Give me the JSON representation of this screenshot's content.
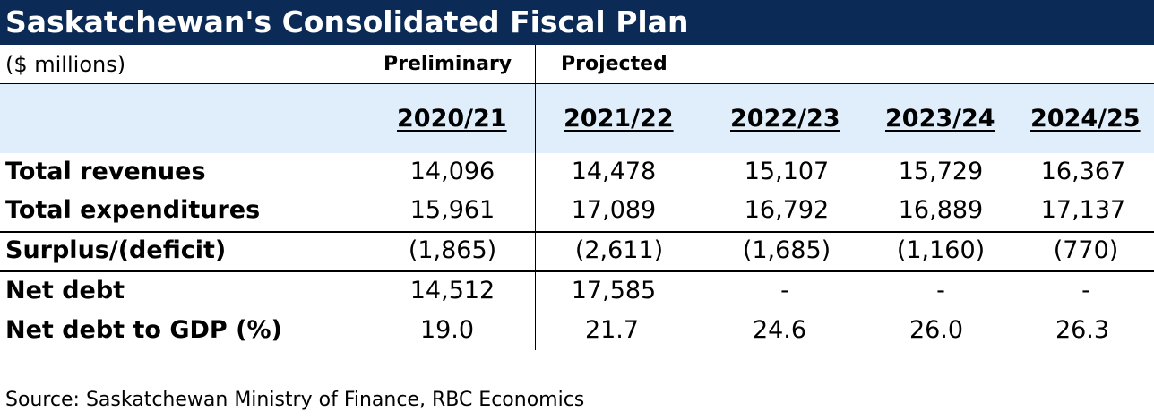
{
  "title": "Saskatchewan's Consolidated Fiscal Plan",
  "units": "($ millions)",
  "group_headers": {
    "preliminary": "Preliminary",
    "projected": "Projected"
  },
  "years": [
    "2020/21",
    "2021/22",
    "2022/23",
    "2023/24",
    "2024/25"
  ],
  "rows": [
    {
      "label": "Total revenues",
      "values": [
        "14,096",
        "14,478",
        "15,107",
        "15,729",
        "16,367"
      ]
    },
    {
      "label": "Total expenditures",
      "values": [
        "15,961",
        "17,089",
        "16,792",
        "16,889",
        "17,137"
      ]
    },
    {
      "label": "Surplus/(deficit)",
      "values": [
        "(1,865)",
        "(2,611)",
        "(1,685)",
        "(1,160)",
        "(770)"
      ]
    },
    {
      "label": "Net debt",
      "values": [
        "14,512",
        "17,585",
        "-",
        "-",
        "-"
      ]
    },
    {
      "label": "Net debt to GDP (%)",
      "values": [
        "19.0",
        "21.7",
        "24.6",
        "26.0",
        "26.3"
      ]
    }
  ],
  "source": "Source: Saskatchewan Ministry of Finance, RBC Economics",
  "colors": {
    "title_bg": "#0b2a55",
    "title_text": "#ffffff",
    "year_band": "#dfeefa"
  },
  "chart_data": {
    "type": "table",
    "title": "Saskatchewan's Consolidated Fiscal Plan",
    "subtitle": "($ millions)",
    "columns": [
      "2020/21",
      "2021/22",
      "2022/23",
      "2023/24",
      "2024/25"
    ],
    "column_groups": [
      {
        "label": "Preliminary",
        "columns": [
          "2020/21"
        ]
      },
      {
        "label": "Projected",
        "columns": [
          "2021/22",
          "2022/23",
          "2023/24",
          "2024/25"
        ]
      }
    ],
    "series": [
      {
        "name": "Total revenues",
        "values": [
          14096,
          14478,
          15107,
          15729,
          16367
        ]
      },
      {
        "name": "Total expenditures",
        "values": [
          15961,
          17089,
          16792,
          16889,
          17137
        ]
      },
      {
        "name": "Surplus/(deficit)",
        "values": [
          -1865,
          -2611,
          -1685,
          -1160,
          -770
        ]
      },
      {
        "name": "Net debt",
        "values": [
          14512,
          17585,
          null,
          null,
          null
        ]
      },
      {
        "name": "Net debt to GDP (%)",
        "values": [
          19.0,
          21.7,
          24.6,
          26.0,
          26.3
        ]
      }
    ]
  }
}
